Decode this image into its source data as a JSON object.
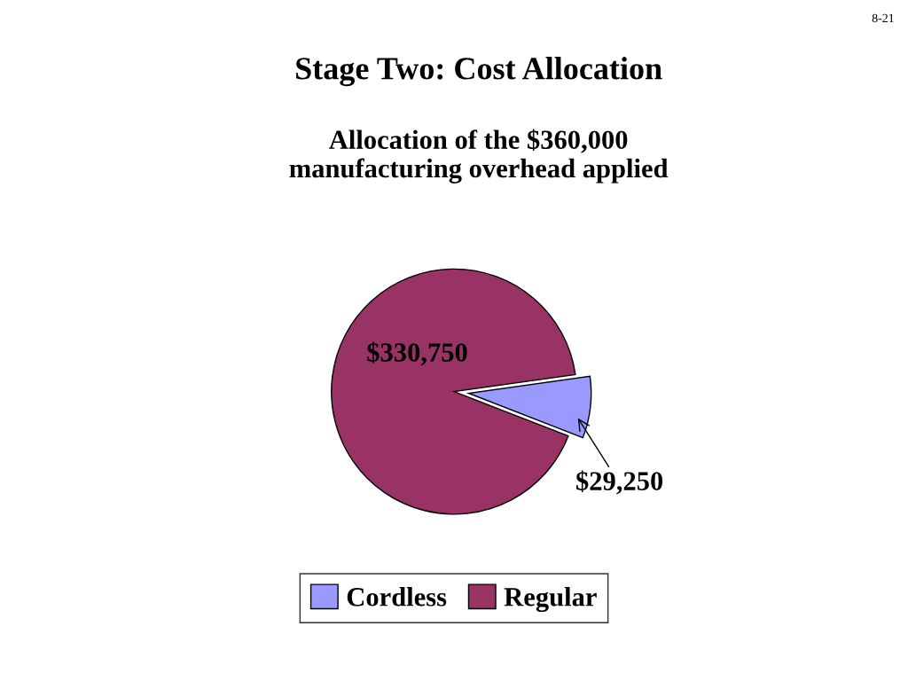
{
  "chart_data": {
    "type": "pie",
    "title": "Stage Two: Cost Allocation",
    "subtitle": "Allocation of the $360,000\nmanufacturing overhead applied",
    "categories": [
      "Cordless",
      "Regular"
    ],
    "values": [
      29250,
      330750
    ],
    "colors": [
      "#9999ff",
      "#993366"
    ],
    "value_labels": [
      "$29,250",
      "$330,750"
    ],
    "legend": "bottom",
    "annotations": [
      "8-21"
    ]
  }
}
